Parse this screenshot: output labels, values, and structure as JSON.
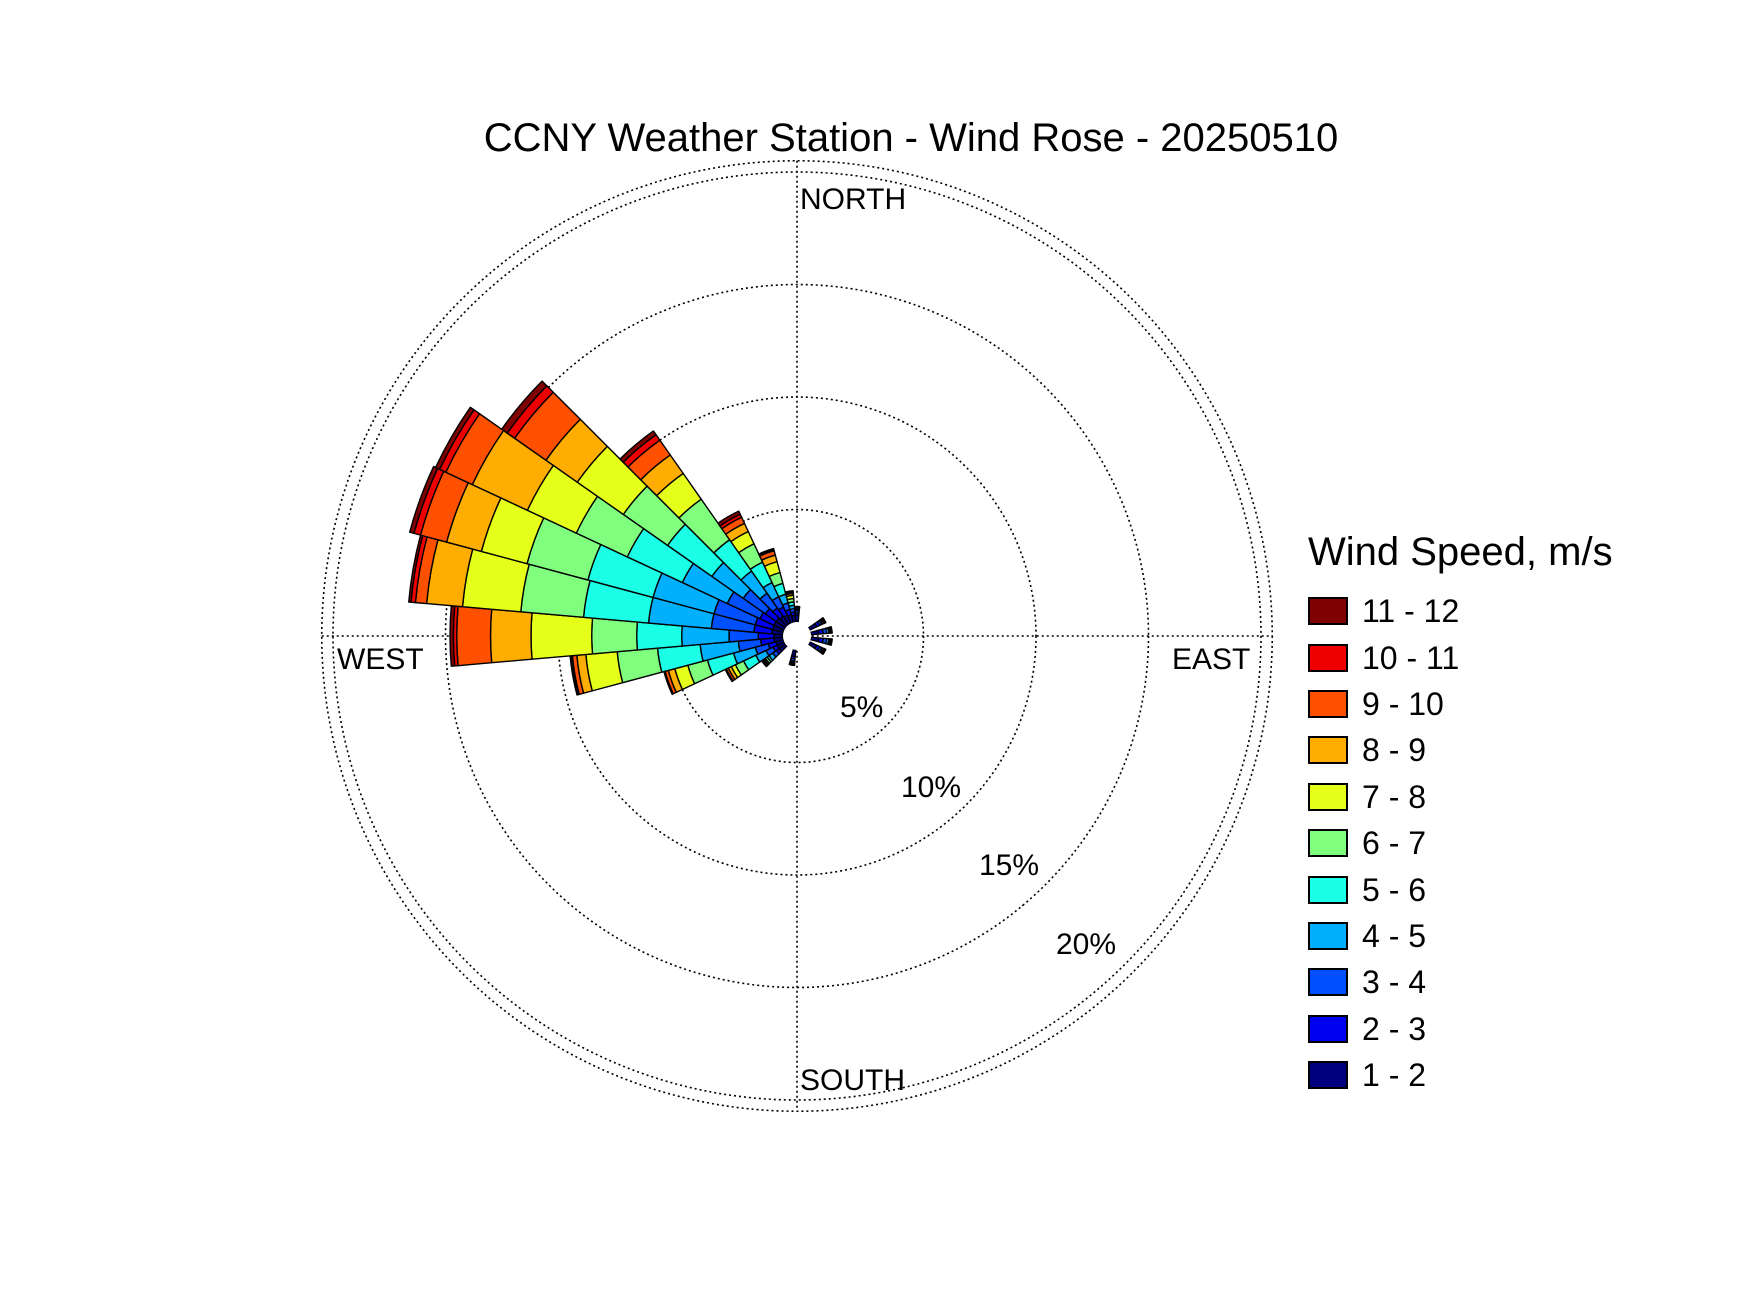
{
  "chart_data": {
    "type": "wind-rose",
    "title": "CCNY Weather Station - Wind Rose - 20250510",
    "direction_labels": {
      "north": "NORTH",
      "east": "EAST",
      "south": "SOUTH",
      "west": "WEST"
    },
    "ring_labels": [
      "5%",
      "10%",
      "15%",
      "20%"
    ],
    "rings": [
      5,
      10,
      15,
      20
    ],
    "rlim": [
      0,
      20.5
    ],
    "grid": true,
    "legend": {
      "title": "Wind Speed, m/s",
      "placement": "right",
      "bins": [
        {
          "label": "11 - 12",
          "color": "#7f0000"
        },
        {
          "label": "10 - 11",
          "color": "#ee0000"
        },
        {
          "label": "9 - 10",
          "color": "#ff5000"
        },
        {
          "label": "8 - 9",
          "color": "#ffad00"
        },
        {
          "label": "7 - 8",
          "color": "#e6ff1a"
        },
        {
          "label": "6 - 7",
          "color": "#80ff7f"
        },
        {
          "label": "5 - 6",
          "color": "#1affe6"
        },
        {
          "label": "4 - 5",
          "color": "#00b0ff"
        },
        {
          "label": "3 - 4",
          "color": "#0050ff"
        },
        {
          "label": "2 - 3",
          "color": "#0000f0"
        },
        {
          "label": "1 - 2",
          "color": "#00007f"
        }
      ]
    },
    "speed_bins_low_to_high": [
      "1 - 2",
      "2 - 3",
      "3 - 4",
      "4 - 5",
      "5 - 6",
      "6 - 7",
      "7 - 8",
      "8 - 9",
      "9 - 10",
      "10 - 11",
      "11 - 12"
    ],
    "sector_width_deg": 10,
    "sectors": [
      {
        "direction_deg": 0,
        "cumulative_percent": [
          0.3,
          0.4,
          0.5,
          0.55,
          0.6,
          0.62,
          0.64,
          0.66,
          0.67,
          0.68,
          0.69
        ]
      },
      {
        "direction_deg": 60,
        "cumulative_percent": [
          0.35,
          0.5,
          0.6,
          0.65,
          0.7,
          0.72,
          0.74,
          0.76,
          0.77,
          0.78,
          0.79
        ]
      },
      {
        "direction_deg": 80,
        "cumulative_percent": [
          0.35,
          0.55,
          0.7,
          0.8,
          0.85,
          0.88,
          0.9,
          0.92,
          0.93,
          0.94,
          0.95
        ]
      },
      {
        "direction_deg": 100,
        "cumulative_percent": [
          0.35,
          0.55,
          0.7,
          0.8,
          0.85,
          0.88,
          0.9,
          0.92,
          0.93,
          0.94,
          0.95
        ]
      },
      {
        "direction_deg": 120,
        "cumulative_percent": [
          0.35,
          0.5,
          0.6,
          0.65,
          0.7,
          0.72,
          0.74,
          0.76,
          0.77,
          0.78,
          0.79
        ]
      },
      {
        "direction_deg": 190,
        "cumulative_percent": [
          0.3,
          0.4,
          0.5,
          0.55,
          0.6,
          0.62,
          0.64,
          0.66,
          0.67,
          0.68,
          0.69
        ]
      },
      {
        "direction_deg": 230,
        "cumulative_percent": [
          0.35,
          0.5,
          0.7,
          0.9,
          1.0,
          1.1,
          1.15,
          1.2,
          1.25,
          1.27,
          1.3
        ]
      },
      {
        "direction_deg": 240,
        "cumulative_percent": [
          0.35,
          0.55,
          0.9,
          1.4,
          2.0,
          2.4,
          2.6,
          2.75,
          2.85,
          2.88,
          2.9
        ]
      },
      {
        "direction_deg": 250,
        "cumulative_percent": [
          0.35,
          0.7,
          1.3,
          2.3,
          3.5,
          4.4,
          5.0,
          5.3,
          5.45,
          5.48,
          5.5
        ]
      },
      {
        "direction_deg": 260,
        "cumulative_percent": [
          0.4,
          1.0,
          2.0,
          3.7,
          5.6,
          7.4,
          8.8,
          9.2,
          9.4,
          9.45,
          9.5
        ]
      },
      {
        "direction_deg": 270,
        "cumulative_percent": [
          0.4,
          1.1,
          2.4,
          4.5,
          6.5,
          8.5,
          11.2,
          13.0,
          14.5,
          14.65,
          14.8
        ]
      },
      {
        "direction_deg": 280,
        "cumulative_percent": [
          0.5,
          1.3,
          3.2,
          6.0,
          8.9,
          11.7,
          14.3,
          15.9,
          16.4,
          16.6,
          16.7
        ]
      },
      {
        "direction_deg": 290,
        "cumulative_percent": [
          0.5,
          1.3,
          3.2,
          6.0,
          9.0,
          11.8,
          13.9,
          15.5,
          16.7,
          17.0,
          17.2
        ]
      },
      {
        "direction_deg": 300,
        "cumulative_percent": [
          0.5,
          1.2,
          2.8,
          5.0,
          7.7,
          10.2,
          12.6,
          15.3,
          16.6,
          16.9,
          17.1
        ]
      },
      {
        "direction_deg": 310,
        "cumulative_percent": [
          0.5,
          1.1,
          2.3,
          4.0,
          6.4,
          8.8,
          11.3,
          13.0,
          14.7,
          15.1,
          15.4
        ]
      },
      {
        "direction_deg": 320,
        "cumulative_percent": [
          0.45,
          0.9,
          1.7,
          2.9,
          4.6,
          6.8,
          8.2,
          9.2,
          10.0,
          10.3,
          10.5
        ]
      },
      {
        "direction_deg": 330,
        "cumulative_percent": [
          0.4,
          0.8,
          1.3,
          2.0,
          3.0,
          3.9,
          4.5,
          4.9,
          5.2,
          5.35,
          5.5
        ]
      },
      {
        "direction_deg": 340,
        "cumulative_percent": [
          0.35,
          0.6,
          0.9,
          1.3,
          1.8,
          2.3,
          2.8,
          3.1,
          3.3,
          3.35,
          3.4
        ]
      },
      {
        "direction_deg": 350,
        "cumulative_percent": [
          0.3,
          0.45,
          0.6,
          0.75,
          0.9,
          1.05,
          1.2,
          1.28,
          1.32,
          1.35,
          1.4
        ]
      }
    ]
  }
}
